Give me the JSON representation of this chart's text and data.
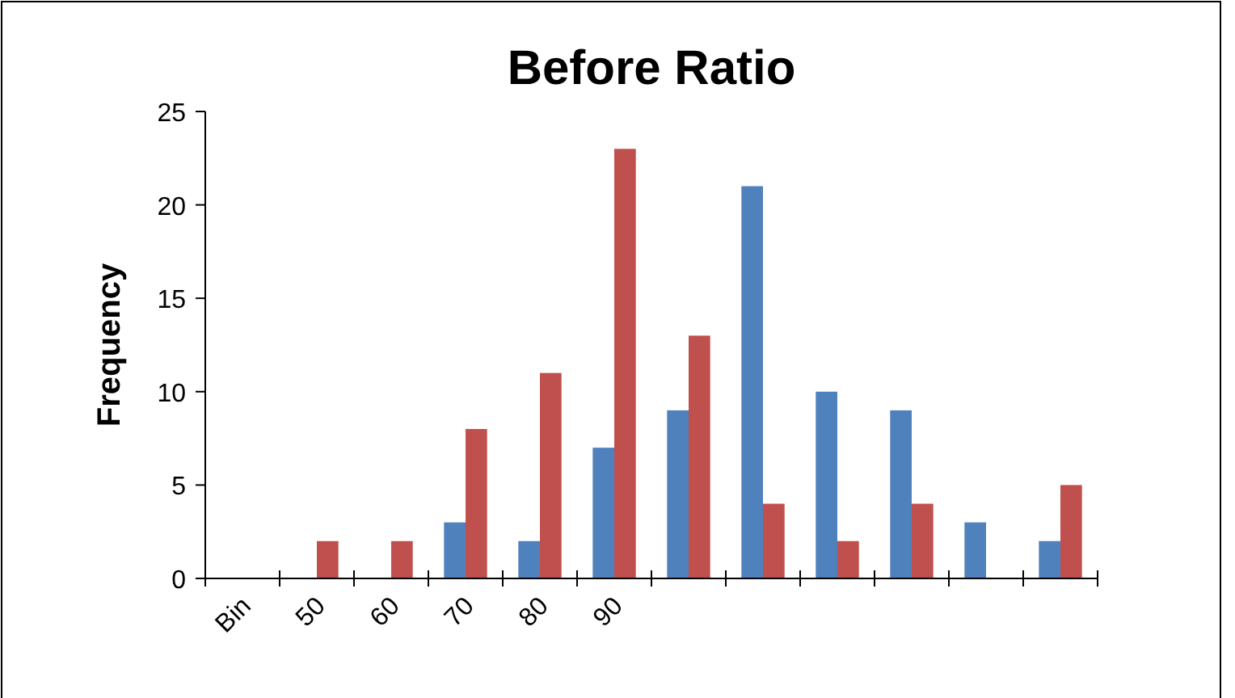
{
  "chart_data": {
    "type": "bar",
    "title": "Before Ratio",
    "ylabel": "Frequency",
    "categories": [
      "Bin",
      "50",
      "60",
      "70",
      "80",
      "90",
      null,
      null,
      null,
      null,
      null,
      null
    ],
    "series": [
      {
        "color": "#4f81bd",
        "values": [
          0,
          0,
          0,
          3,
          2,
          7,
          9,
          21,
          10,
          9,
          3,
          2
        ]
      },
      {
        "color": "#c0504d",
        "values": [
          0,
          2,
          2,
          8,
          11,
          23,
          13,
          4,
          2,
          4,
          0,
          5
        ]
      }
    ],
    "ylim": [
      0,
      25
    ],
    "yticks": [
      0,
      5,
      10,
      15,
      20,
      25
    ],
    "grid": false
  }
}
